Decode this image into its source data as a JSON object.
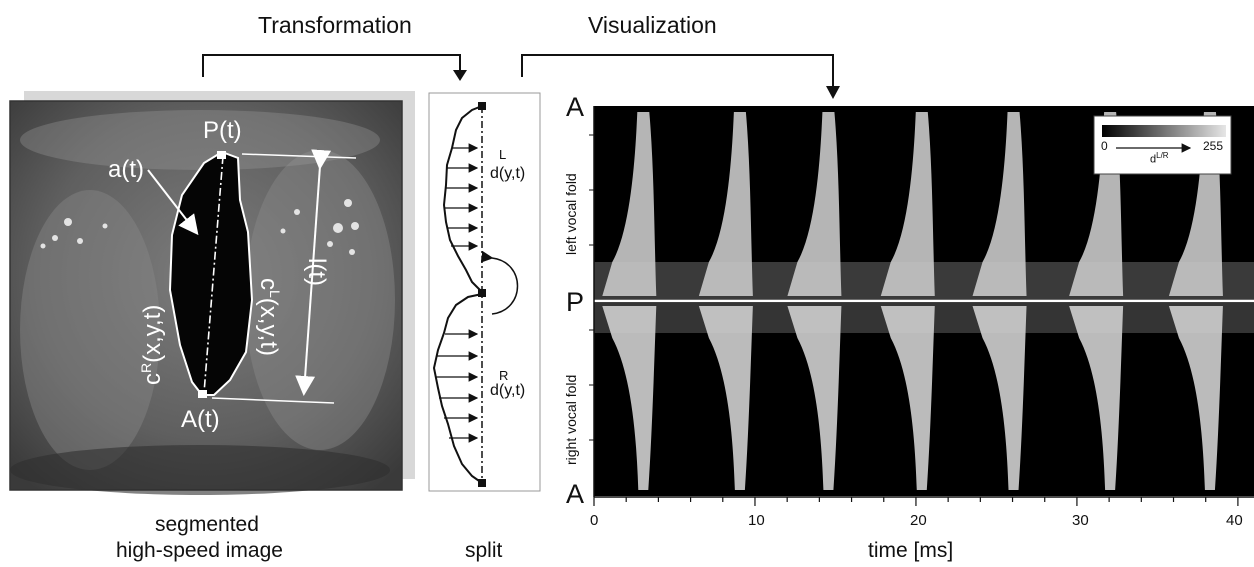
{
  "stages": {
    "transformation": "Transformation",
    "visualization": "Visualization"
  },
  "image_panel": {
    "caption_line1": "segmented",
    "caption_line2": "high-speed image",
    "labels": {
      "posterior": "P(t)",
      "anterior": "A(t)",
      "area": "a(t)",
      "length": "l(t)",
      "right_contour_base": "c",
      "right_contour_sup": "R",
      "right_contour_args": "(x,y,t)",
      "left_contour_base": "c",
      "left_contour_sup": "L",
      "left_contour_args": "(x,y,t)"
    }
  },
  "split_panel": {
    "caption": "split",
    "left_sup": "L",
    "left_label": "d(y,t)",
    "right_sup": "R",
    "right_label": "d(y,t)"
  },
  "kymogram": {
    "axis_top": "A",
    "axis_mid": "P",
    "axis_bottom": "A",
    "left_fold_label": "left vocal fold",
    "right_fold_label": "right vocal fold",
    "xlabel": "time [ms]",
    "xticks": [
      "0",
      "10",
      "20",
      "30",
      "40"
    ],
    "colorbar": {
      "min": "0",
      "max": "255",
      "label": "d",
      "label_sup": "L/R"
    }
  },
  "chart_data": {
    "type": "heatmap",
    "xlabel": "time [ms]",
    "xlim": [
      0,
      40
    ],
    "xticks": [
      0,
      10,
      20,
      30,
      40
    ],
    "y_labels": [
      "A",
      "P",
      "A"
    ],
    "colorbar_range": [
      0,
      255
    ],
    "series": [
      {
        "name": "left vocal fold",
        "peak_times_ms": [
          3,
          9,
          14.5,
          20.3,
          26,
          32,
          38.2
        ]
      },
      {
        "name": "right vocal fold",
        "peak_times_ms": [
          3,
          9,
          14.5,
          20.3,
          26,
          32,
          38.2
        ]
      }
    ]
  }
}
